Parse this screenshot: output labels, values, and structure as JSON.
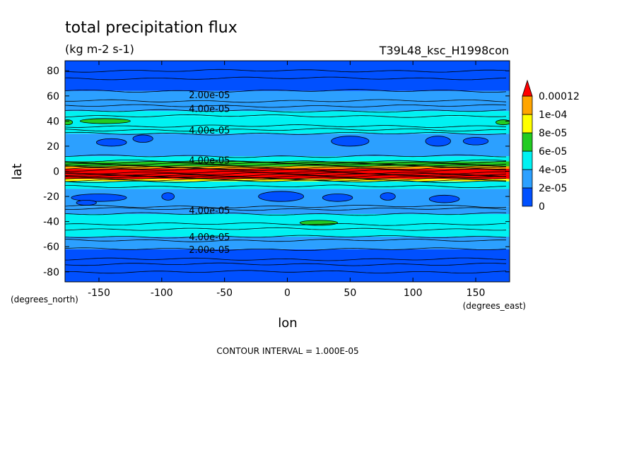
{
  "chart_data": {
    "type": "heatmap",
    "title": "total precipitation flux",
    "units": "(kg m-2 s-1)",
    "dataset": "T39L48_ksc_H1998con",
    "xlabel": "lon",
    "ylabel": "lat",
    "x_units": "(degrees_east)",
    "y_units": "(degrees_north)",
    "xlim": [
      -177,
      177
    ],
    "ylim": [
      -88,
      88
    ],
    "x_ticks": [
      -150,
      -100,
      -50,
      0,
      50,
      100,
      150
    ],
    "x_tick_labels": [
      "-150",
      "-100",
      "-50",
      "0",
      "50",
      "100",
      "150"
    ],
    "y_ticks": [
      80,
      60,
      40,
      20,
      0,
      -20,
      -40,
      -60,
      -80
    ],
    "y_tick_labels": [
      "80",
      "60",
      "40",
      "20",
      "0",
      "-20",
      "-40",
      "-60",
      "-80"
    ],
    "footer": "CONTOUR INTERVAL = 1.000E-05",
    "colorbar": {
      "levels": [
        0,
        2e-05,
        4e-05,
        6e-05,
        8e-05,
        0.0001,
        0.00012
      ],
      "labels": [
        "0",
        "2e-05",
        "4e-05",
        "6e-05",
        "8e-05",
        "1e-04",
        "0.00012"
      ],
      "colors": [
        "#0050ff",
        "#2ca0ff",
        "#00f2f2",
        "#22cc22",
        "#ffff00",
        "#ffa500",
        "#ff0000"
      ]
    },
    "bands": [
      {
        "lat": [
          -88,
          -62
        ],
        "level": 0
      },
      {
        "lat": [
          -62,
          -52
        ],
        "level": 1
      },
      {
        "lat": [
          -52,
          -46
        ],
        "level": 2
      },
      {
        "lat": [
          -46,
          -34
        ],
        "level": 2
      },
      {
        "lat": [
          -34,
          -28
        ],
        "level": 1
      },
      {
        "lat": [
          -28,
          -14
        ],
        "level": 1
      },
      {
        "lat": [
          -14,
          -8
        ],
        "level": 2
      },
      {
        "lat": [
          -8,
          -6
        ],
        "level": 4
      },
      {
        "lat": [
          -6,
          -2
        ],
        "level": 6
      },
      {
        "lat": [
          -2,
          2
        ],
        "level": 6
      },
      {
        "lat": [
          2,
          4
        ],
        "level": 5
      },
      {
        "lat": [
          4,
          8
        ],
        "level": 3
      },
      {
        "lat": [
          8,
          12
        ],
        "level": 2
      },
      {
        "lat": [
          12,
          30
        ],
        "level": 1
      },
      {
        "lat": [
          30,
          36
        ],
        "level": 2
      },
      {
        "lat": [
          36,
          44
        ],
        "level": 2
      },
      {
        "lat": [
          44,
          48
        ],
        "level": 2
      },
      {
        "lat": [
          48,
          56
        ],
        "level": 1
      },
      {
        "lat": [
          56,
          64
        ],
        "level": 1
      },
      {
        "lat": [
          64,
          88
        ],
        "level": 0
      }
    ],
    "patches": [
      {
        "lon": -145,
        "lat": 40,
        "rx": 20,
        "ry": 2,
        "level": 3
      },
      {
        "lon": -175,
        "lat": 39,
        "rx": 4,
        "ry": 2,
        "level": 3
      },
      {
        "lon": 172,
        "lat": 39,
        "rx": 6,
        "ry": 2,
        "level": 3
      },
      {
        "lon": 25,
        "lat": -41,
        "rx": 15,
        "ry": 2,
        "level": 3
      },
      {
        "lon": -140,
        "lat": 23,
        "rx": 12,
        "ry": 3,
        "level": 0
      },
      {
        "lon": -115,
        "lat": 26,
        "rx": 8,
        "ry": 3,
        "level": 0
      },
      {
        "lon": 50,
        "lat": 24,
        "rx": 15,
        "ry": 4,
        "level": 0
      },
      {
        "lon": 120,
        "lat": 24,
        "rx": 10,
        "ry": 4,
        "level": 0
      },
      {
        "lon": 150,
        "lat": 24,
        "rx": 10,
        "ry": 3,
        "level": 0
      },
      {
        "lon": -150,
        "lat": -21,
        "rx": 22,
        "ry": 3,
        "level": 0
      },
      {
        "lon": -95,
        "lat": -20,
        "rx": 5,
        "ry": 3,
        "level": 0
      },
      {
        "lon": -5,
        "lat": -20,
        "rx": 18,
        "ry": 4,
        "level": 0
      },
      {
        "lon": 40,
        "lat": -21,
        "rx": 12,
        "ry": 3,
        "level": 0
      },
      {
        "lon": 80,
        "lat": -20,
        "rx": 6,
        "ry": 3,
        "level": 0
      },
      {
        "lon": 125,
        "lat": -22,
        "rx": 12,
        "ry": 3,
        "level": 0
      },
      {
        "lon": -160,
        "lat": -25,
        "rx": 8,
        "ry": 2,
        "level": 0
      }
    ],
    "contour_lines_lat": [
      -80,
      -74,
      -70,
      -62,
      -55,
      -52,
      -46,
      -42,
      -34,
      -30,
      -28,
      -12,
      -8,
      -7,
      -6,
      -5,
      -4,
      -3,
      -2,
      -1,
      1,
      2,
      3,
      4,
      5,
      6,
      7,
      8,
      12,
      30,
      33,
      36,
      44,
      48,
      52,
      56,
      64,
      74,
      80
    ],
    "contour_labels": [
      {
        "text": "2.00e-05",
        "lon": -62,
        "lat": 61
      },
      {
        "text": "4.00e-05",
        "lon": -62,
        "lat": 50
      },
      {
        "text": "4.00e-05",
        "lon": -62,
        "lat": 33
      },
      {
        "text": "4.00e-05",
        "lon": -62,
        "lat": 9
      },
      {
        "text": "4.00e-05",
        "lon": -62,
        "lat": -31
      },
      {
        "text": "4.00e-05",
        "lon": -62,
        "lat": -52
      },
      {
        "text": "2.00e-05",
        "lon": -62,
        "lat": -62
      }
    ]
  }
}
